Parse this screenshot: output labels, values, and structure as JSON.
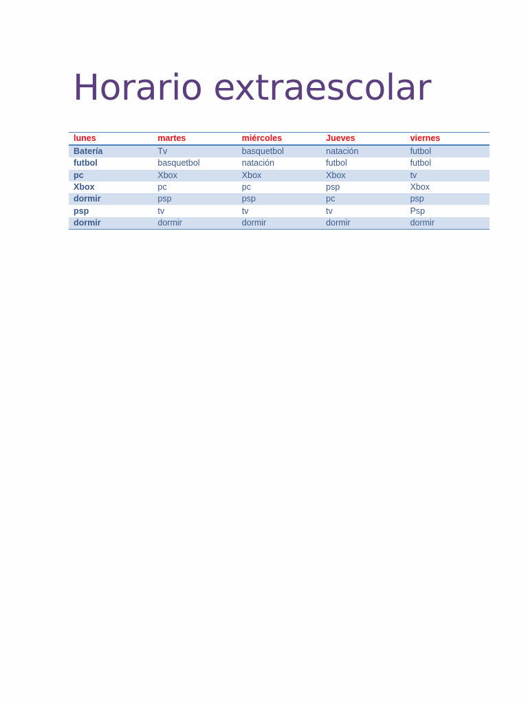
{
  "title": "Horario extraescolar",
  "table": {
    "headers": [
      "lunes",
      "martes",
      "miércoles",
      "Jueves",
      "viernes"
    ],
    "rows": [
      [
        "Batería",
        "Tv",
        "basquetbol",
        "natación",
        "futbol"
      ],
      [
        "futbol",
        "basquetbol",
        "natación",
        "futbol",
        "futbol"
      ],
      [
        "pc",
        "Xbox",
        "Xbox",
        "Xbox",
        "tv"
      ],
      [
        "Xbox",
        "pc",
        "pc",
        "psp",
        "Xbox"
      ],
      [
        "dormir",
        "psp",
        "psp",
        "pc",
        "psp"
      ],
      [
        "psp",
        "tv",
        "tv",
        "tv",
        "Psp"
      ],
      [
        "dormir",
        "dormir",
        "dormir",
        "dormir",
        "dormir"
      ]
    ]
  },
  "colors": {
    "title": "#5b3f7e",
    "header_text": "#e8121b",
    "cell_text": "#3b5a8a",
    "band": "#d3dfee",
    "rule": "#4f81bd"
  }
}
